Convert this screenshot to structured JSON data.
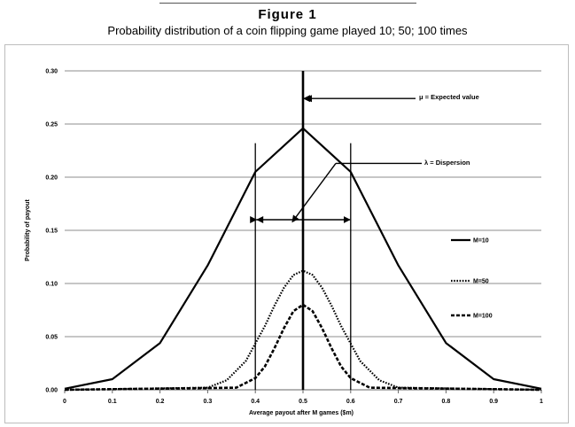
{
  "figure": {
    "label": "Figure 1",
    "caption": "Probability distribution of a coin flipping game played 10; 50; 100 times"
  },
  "chart_data": {
    "type": "line",
    "xlabel": "Average payout after M games ($m)",
    "ylabel": "Probability of payout",
    "xlim": [
      0,
      1
    ],
    "ylim": [
      0,
      0.3
    ],
    "x_ticks": [
      "0",
      "0.1",
      "0.2",
      "0.3",
      "0.4",
      "0.5",
      "0.6",
      "0.7",
      "0.8",
      "0.9",
      "1"
    ],
    "y_ticks": [
      "0.00",
      "0.05",
      "0.10",
      "0.15",
      "0.20",
      "0.25",
      "0.30"
    ],
    "grid": true,
    "legend_position": "right",
    "series": [
      {
        "name": "M=10",
        "style": "solid",
        "x": [
          0,
          0.1,
          0.2,
          0.3,
          0.4,
          0.5,
          0.6,
          0.7,
          0.8,
          0.9,
          1.0
        ],
        "y": [
          0.001,
          0.01,
          0.044,
          0.117,
          0.205,
          0.246,
          0.205,
          0.117,
          0.044,
          0.01,
          0.001
        ]
      },
      {
        "name": "M=50",
        "style": "dotted",
        "x": [
          0,
          0.3,
          0.34,
          0.38,
          0.42,
          0.44,
          0.46,
          0.48,
          0.5,
          0.52,
          0.54,
          0.56,
          0.58,
          0.62,
          0.66,
          0.7,
          1.0
        ],
        "y": [
          0,
          0.002,
          0.009,
          0.027,
          0.06,
          0.079,
          0.096,
          0.108,
          0.112,
          0.108,
          0.096,
          0.079,
          0.06,
          0.027,
          0.009,
          0.002,
          0
        ]
      },
      {
        "name": "M=100",
        "style": "dashed",
        "x": [
          0,
          0.36,
          0.4,
          0.42,
          0.44,
          0.46,
          0.48,
          0.5,
          0.52,
          0.54,
          0.56,
          0.58,
          0.6,
          0.64,
          1.0
        ],
        "y": [
          0,
          0.002,
          0.011,
          0.022,
          0.039,
          0.058,
          0.074,
          0.08,
          0.074,
          0.058,
          0.039,
          0.022,
          0.011,
          0.002,
          0
        ]
      }
    ],
    "annotations": {
      "expected_value": "μ = Expected value",
      "dispersion": "λ = Dispersion"
    }
  }
}
